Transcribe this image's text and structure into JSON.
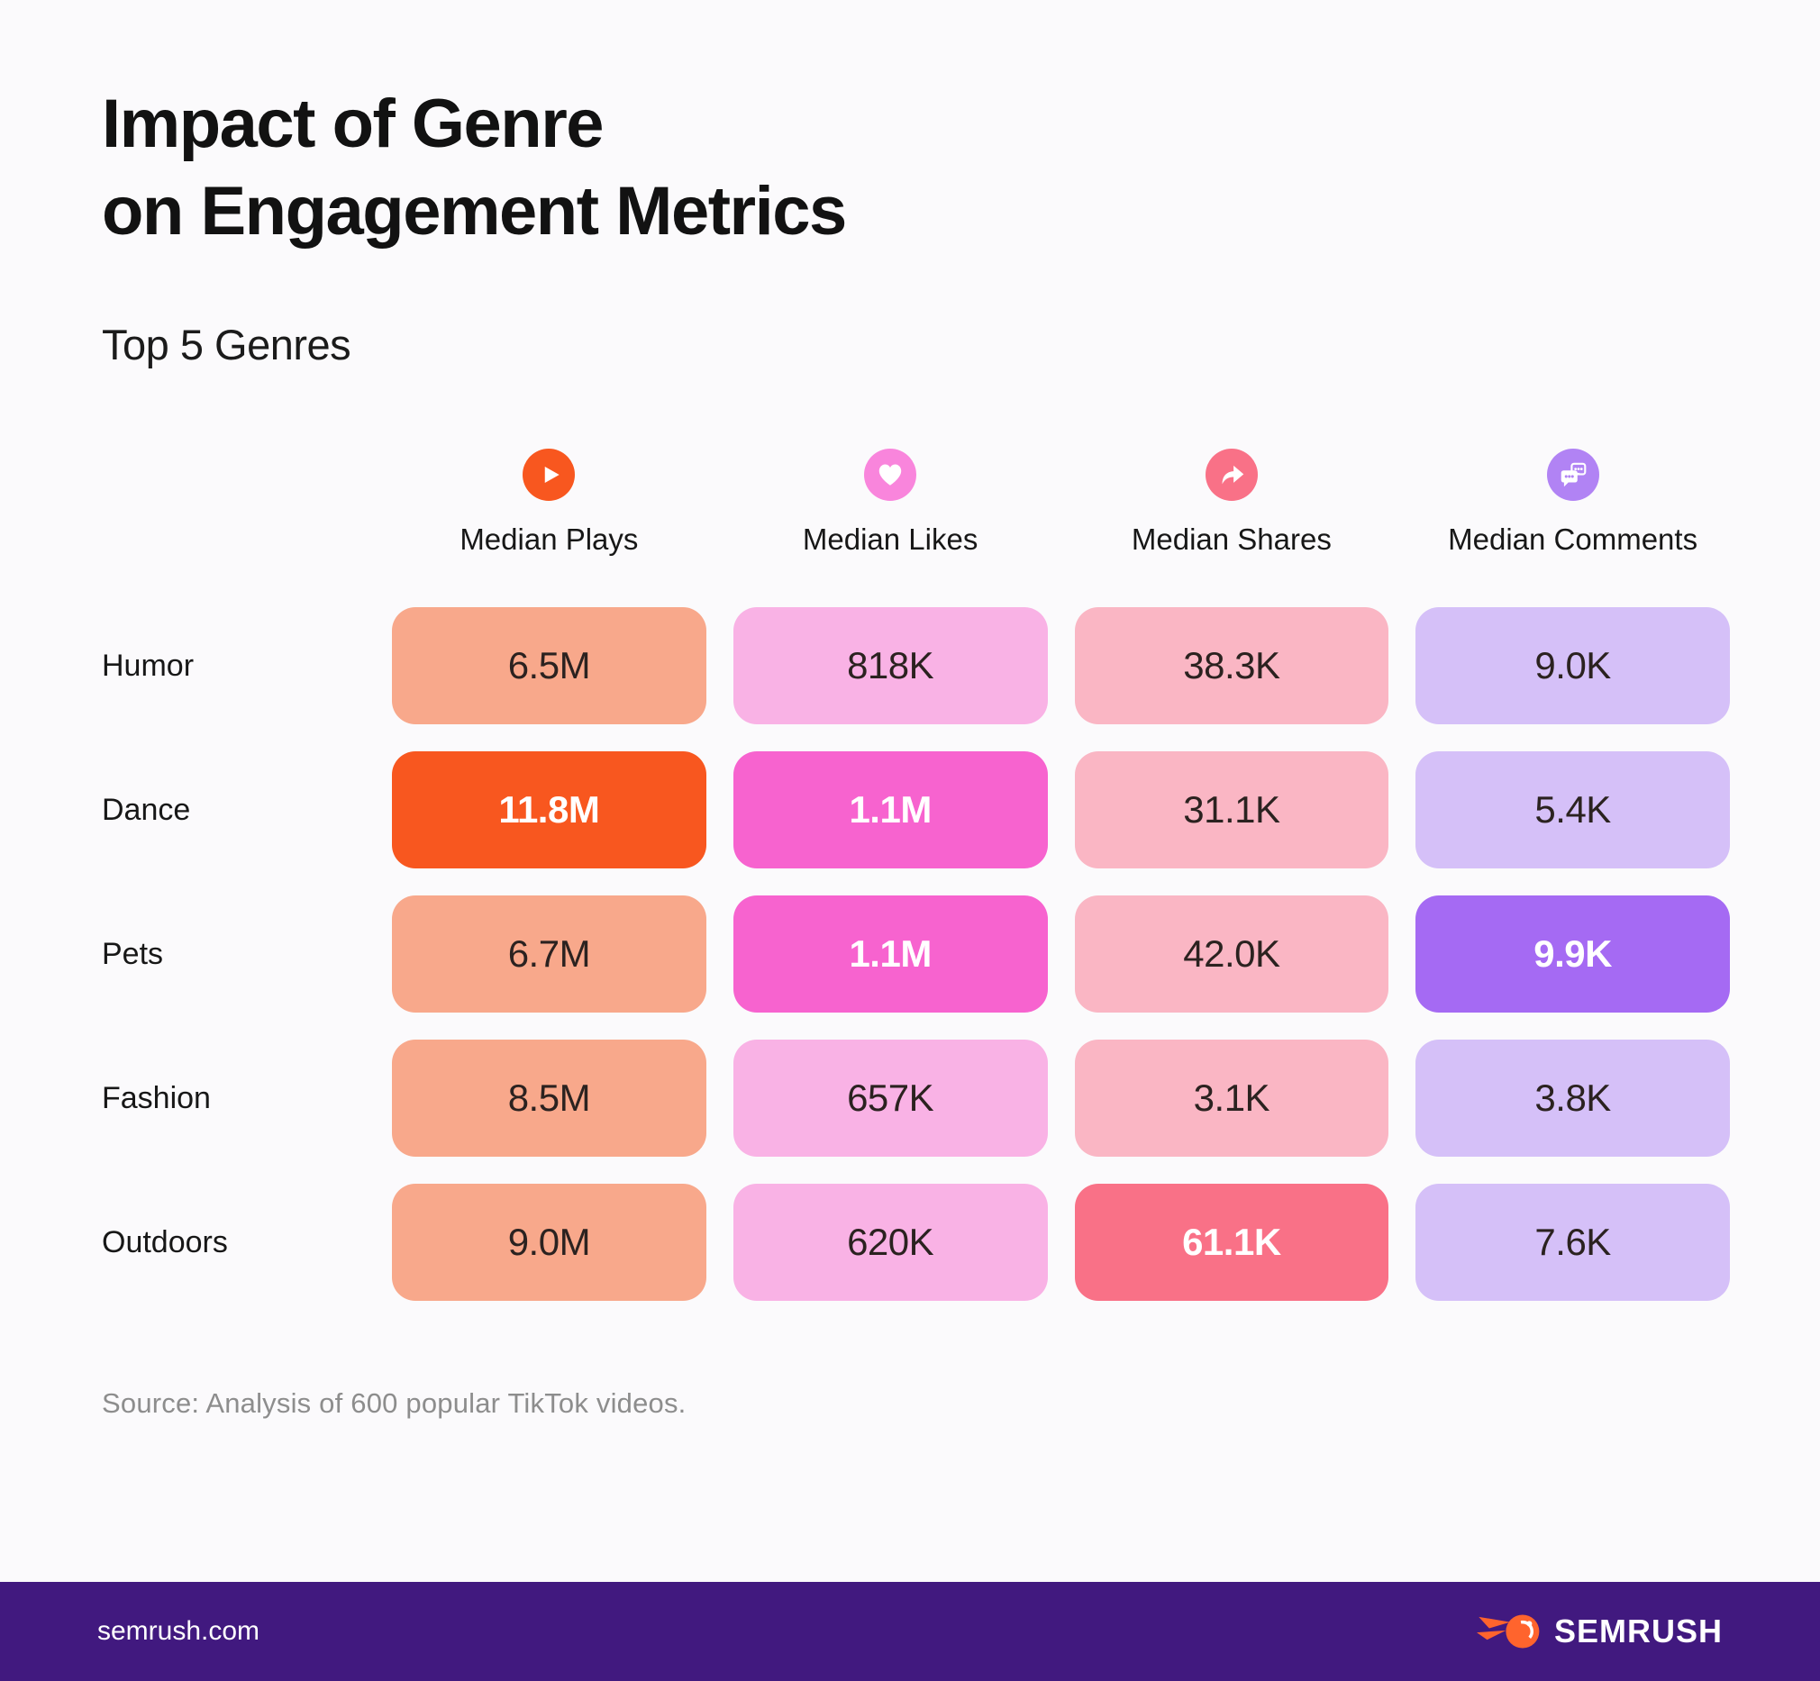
{
  "page": {
    "title_line1": "Impact of Genre",
    "title_line2": "on Engagement Metrics",
    "subtitle": "Top 5 Genres",
    "source": "Source: Analysis of 600 popular TikTok videos.",
    "background": "#FBFAFC"
  },
  "table": {
    "columns": [
      {
        "key": "plays",
        "label": "Median Plays",
        "icon": "play-icon",
        "icon_color": "#F8571F",
        "cell_color": "#F8A88B",
        "highlight_color": "#F8571F"
      },
      {
        "key": "likes",
        "label": "Median Likes",
        "icon": "heart-icon",
        "icon_color": "#F985DC",
        "cell_color": "#F9B2E5",
        "highlight_color": "#F763CF"
      },
      {
        "key": "shares",
        "label": "Median Shares",
        "icon": "share-icon",
        "icon_color": "#F97187",
        "cell_color": "#FAB6C4",
        "highlight_color": "#F97187"
      },
      {
        "key": "comments",
        "label": "Median Comments",
        "icon": "comments-icon",
        "icon_color": "#B183F4",
        "cell_color": "#D5C0F8",
        "highlight_color": "#A56AF3"
      }
    ],
    "rows": [
      {
        "genre": "Humor",
        "values": [
          "6.5M",
          "818K",
          "38.3K",
          "9.0K"
        ],
        "highlight": [
          false,
          false,
          false,
          false
        ]
      },
      {
        "genre": "Dance",
        "values": [
          "11.8M",
          "1.1M",
          "31.1K",
          "5.4K"
        ],
        "highlight": [
          true,
          true,
          false,
          false
        ]
      },
      {
        "genre": "Pets",
        "values": [
          "6.7M",
          "1.1M",
          "42.0K",
          "9.9K"
        ],
        "highlight": [
          false,
          true,
          false,
          true
        ]
      },
      {
        "genre": "Fashion",
        "values": [
          "8.5M",
          "657K",
          "3.1K",
          "3.8K"
        ],
        "highlight": [
          false,
          false,
          false,
          false
        ]
      },
      {
        "genre": "Outdoors",
        "values": [
          "9.0M",
          "620K",
          "61.1K",
          "7.6K"
        ],
        "highlight": [
          false,
          false,
          true,
          false
        ]
      }
    ]
  },
  "footer": {
    "site": "semrush.com",
    "brand": "SEMRUSH",
    "bar_color": "#41197F",
    "logo_color": "#FF642D"
  },
  "chart_data": {
    "type": "table",
    "title": "Impact of Genre on Engagement Metrics",
    "subtitle": "Top 5 Genres",
    "categories": [
      "Humor",
      "Dance",
      "Pets",
      "Fashion",
      "Outdoors"
    ],
    "series": [
      {
        "name": "Median Plays",
        "labels": [
          "6.5M",
          "11.8M",
          "6.7M",
          "8.5M",
          "9.0M"
        ],
        "values": [
          6500000,
          11800000,
          6700000,
          8500000,
          9000000
        ]
      },
      {
        "name": "Median Likes",
        "labels": [
          "818K",
          "1.1M",
          "1.1M",
          "657K",
          "620K"
        ],
        "values": [
          818000,
          1100000,
          1100000,
          657000,
          620000
        ]
      },
      {
        "name": "Median Shares",
        "labels": [
          "38.3K",
          "31.1K",
          "42.0K",
          "3.1K",
          "61.1K"
        ],
        "values": [
          38300,
          31100,
          42000,
          3100,
          61100
        ]
      },
      {
        "name": "Median Comments",
        "labels": [
          "9.0K",
          "5.4K",
          "9.9K",
          "3.8K",
          "7.6K"
        ],
        "values": [
          9000,
          5400,
          9900,
          3800,
          7600
        ]
      }
    ],
    "highlighted_cells": [
      {
        "genre": "Dance",
        "metric": "Median Plays",
        "label": "11.8M"
      },
      {
        "genre": "Dance",
        "metric": "Median Likes",
        "label": "1.1M"
      },
      {
        "genre": "Pets",
        "metric": "Median Likes",
        "label": "1.1M"
      },
      {
        "genre": "Pets",
        "metric": "Median Comments",
        "label": "9.9K"
      },
      {
        "genre": "Outdoors",
        "metric": "Median Shares",
        "label": "61.1K"
      }
    ],
    "note": "Source: Analysis of 600 popular TikTok videos.",
    "legend_position": "none",
    "grid": false
  }
}
